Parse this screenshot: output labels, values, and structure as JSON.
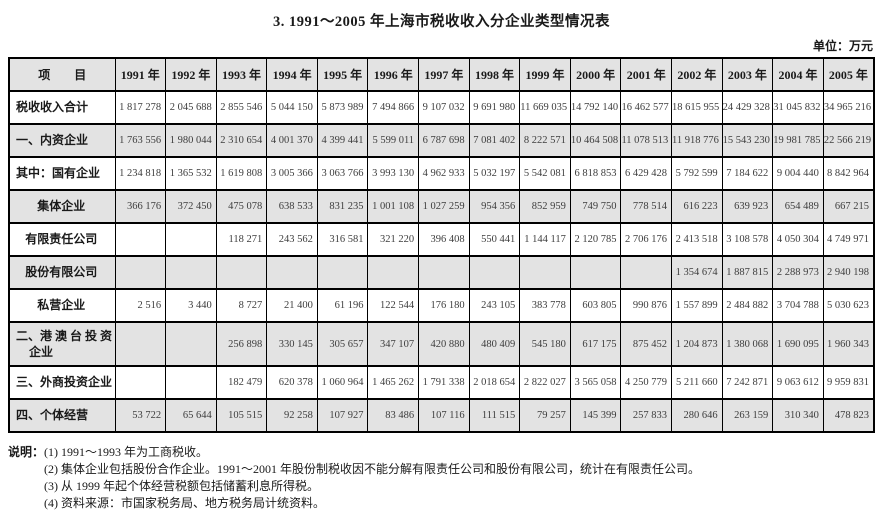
{
  "page": {
    "title": "3. 1991～2005 年上海市税收收入分企业类型情况表",
    "unit": "单位：万元"
  },
  "table": {
    "item_header": "项　　目",
    "years": [
      "1991 年",
      "1992 年",
      "1993 年",
      "1994 年",
      "1995 年",
      "1996 年",
      "1997 年",
      "1998 年",
      "1999 年",
      "2000 年",
      "2001 年",
      "2002 年",
      "2003 年",
      "2004 年",
      "2005 年"
    ],
    "rows": [
      {
        "label": "税收收入合计",
        "align": "left",
        "values": [
          "1 817 278",
          "2 045 688",
          "2 855 546",
          "5 044 150",
          "5 873 989",
          "7 494 866",
          "9 107 032",
          "9 691 980",
          "11 669 035",
          "14 792 140",
          "16 462 577",
          "18 615 955",
          "24 429 328",
          "31 045 832",
          "34 965 216"
        ]
      },
      {
        "label": "一、内资企业",
        "align": "left",
        "values": [
          "1 763 556",
          "1 980 044",
          "2 310 654",
          "4 001 370",
          "4 399 441",
          "5 599 011",
          "6 787 698",
          "7 081 402",
          "8 222 571",
          "10 464 508",
          "11 078 513",
          "11 918 776",
          "15 543 230",
          "19 981 785",
          "22 566 219"
        ]
      },
      {
        "label": "其中：国有企业",
        "align": "left",
        "values": [
          "1 234 818",
          "1 365 532",
          "1 619 808",
          "3 005 366",
          "3 063 766",
          "3 993 130",
          "4 962 933",
          "5 032 197",
          "5 542 081",
          "6 818 853",
          "6 429 428",
          "5 792 599",
          "7 184 622",
          "9 004 440",
          "8 842 964"
        ]
      },
      {
        "label": "集体企业",
        "align": "center",
        "values": [
          "366 176",
          "372 450",
          "475 078",
          "638 533",
          "831 235",
          "1 001 108",
          "1 027 259",
          "954 356",
          "852 959",
          "749 750",
          "778 514",
          "616 223",
          "639 923",
          "654 489",
          "667 215"
        ]
      },
      {
        "label": "有限责任公司",
        "align": "center",
        "values": [
          "",
          "",
          "118 271",
          "243 562",
          "316 581",
          "321 220",
          "396 408",
          "550 441",
          "1 144 117",
          "2 120 785",
          "2 706 176",
          "2 413 518",
          "3 108 578",
          "4 050 304",
          "4 749 971"
        ]
      },
      {
        "label": "股份有限公司",
        "align": "center",
        "values": [
          "",
          "",
          "",
          "",
          "",
          "",
          "",
          "",
          "",
          "",
          "",
          "1 354 674",
          "1 887 815",
          "2 288 973",
          "2 940 198"
        ]
      },
      {
        "label": "私营企业",
        "align": "center",
        "values": [
          "2 516",
          "3 440",
          "8 727",
          "21 400",
          "61 196",
          "122 544",
          "176 180",
          "243 105",
          "383 778",
          "603 805",
          "990 876",
          "1 557 899",
          "2 484 882",
          "3 704 788",
          "5 030 623"
        ]
      },
      {
        "label": "二、港 澳 台 投 资",
        "label2": "企业",
        "align": "left",
        "values": [
          "",
          "",
          "256 898",
          "330 145",
          "305 657",
          "347 107",
          "420 880",
          "480 409",
          "545 180",
          "617 175",
          "875 452",
          "1 204 873",
          "1 380 068",
          "1 690 095",
          "1 960 343"
        ]
      },
      {
        "label": "三、外商投资企业",
        "align": "left",
        "values": [
          "",
          "",
          "182 479",
          "620 378",
          "1 060 964",
          "1 465 262",
          "1 791 338",
          "2 018 654",
          "2 822 027",
          "3 565 058",
          "4 250 779",
          "5 211 660",
          "7 242 871",
          "9 063 612",
          "9 959 831"
        ]
      },
      {
        "label": "四、个体经营",
        "align": "left",
        "values": [
          "53 722",
          "65 644",
          "105 515",
          "92 258",
          "107 927",
          "83 486",
          "107 116",
          "111 515",
          "79 257",
          "145 399",
          "257 833",
          "280 646",
          "263 159",
          "310 340",
          "478 823"
        ]
      }
    ]
  },
  "notes": {
    "label": "说明：",
    "items": [
      "(1) 1991～1993 年为工商税收。",
      "(2) 集体企业包括股份合作企业。1991～2001 年股份制税收因不能分解有限责任公司和股份有限公司，统计在有限责任公司。",
      "(3) 从 1999 年起个体经营税额包括储蓄利息所得税。",
      "(4) 资料来源：市国家税务局、地方税务局计统资料。"
    ]
  },
  "colors": {
    "row_shade": "#e3e3e3",
    "border": "#000000",
    "number_text": "#3d3d3d"
  }
}
